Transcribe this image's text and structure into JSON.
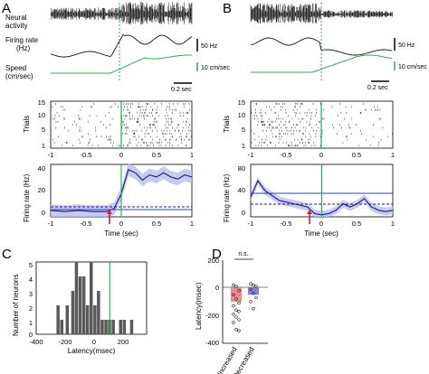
{
  "panels": {
    "A": {
      "label": "A",
      "neural_label": "Neural\nactivity",
      "rate_label": "Firing rate\n(Hz)",
      "speed_label": "Speed\n(cm/sec)",
      "rate_scale": "50 Hz",
      "speed_scale": "10 cm/sec",
      "time_scale": "0.2 sec",
      "raster": {
        "ylabel": "Trials",
        "yticks": [
          "15",
          "10",
          "5",
          "1"
        ]
      },
      "psth": {
        "ylabel": "Firing rate (Hz)",
        "yticks": [
          "40",
          "20",
          "0"
        ],
        "xlabel": "Time (sec)",
        "xticks": [
          "-1",
          "-0.5",
          "0",
          "0.5",
          "1"
        ]
      }
    },
    "B": {
      "label": "B",
      "rate_scale": "50 Hz",
      "speed_scale": "10 cm/sec",
      "time_scale": "0.2 sec",
      "raster": {
        "ylabel": "Trials",
        "yticks": [
          "15",
          "10",
          "5",
          "1"
        ]
      },
      "psth": {
        "ylabel": "Firing rate (Hz)",
        "yticks": [
          "80",
          "40",
          "0"
        ],
        "xlabel": "Time (sec)",
        "xticks": [
          "-1",
          "-0.5",
          "0",
          "0.5",
          "1"
        ]
      }
    },
    "C": {
      "label": "C",
      "ylabel": "Number of neurons",
      "xlabel": "Latency(msec)",
      "yticks": [
        "5",
        "4",
        "3",
        "2",
        "1",
        "0"
      ],
      "xticks": [
        "-400",
        "-200",
        "0",
        "200"
      ]
    },
    "D": {
      "label": "D",
      "ylabel": "Latency(msec)",
      "yticks": [
        "200",
        "0",
        "-200",
        "-400"
      ],
      "significance": "n.s.",
      "categories": [
        "Increased",
        "Decreased"
      ]
    }
  },
  "colors": {
    "speed": "#3aa655",
    "onset": "#19b04a",
    "fit": "#2b3fbf",
    "band": "#b9bdf2",
    "arrow": "#e8191c",
    "bar_inc": "#f08a86",
    "bar_dec": "#7f7fe6",
    "hist": "#595959"
  },
  "chart_data": [
    {
      "type": "bar",
      "title": "",
      "xlabel": "Latency(msec)",
      "ylabel": "Number of neurons",
      "xlim": [
        -400,
        200
      ],
      "ylim": [
        0,
        5
      ],
      "x": [
        -280,
        -260,
        -230,
        -200,
        -180,
        -160,
        -140,
        -120,
        -100,
        -80,
        -60,
        -40,
        -20,
        0,
        20,
        60,
        80,
        120
      ],
      "values": [
        2,
        1,
        2,
        3,
        5,
        4,
        4,
        2,
        5,
        2,
        3,
        1,
        1,
        1,
        1,
        1,
        1,
        1
      ],
      "annotations": [
        "onset line at 0 msec"
      ]
    },
    {
      "type": "bar",
      "title": "",
      "xlabel": "",
      "ylabel": "Latency(msec)",
      "ylim": [
        -400,
        200
      ],
      "categories": [
        "Increased",
        "Decreased"
      ],
      "values": [
        -100,
        -50
      ],
      "annotations": [
        "n.s."
      ]
    },
    {
      "type": "line",
      "title": "",
      "xlabel": "Time (sec)",
      "ylabel": "Firing rate (Hz)",
      "xlim": [
        -1,
        1
      ],
      "ylim": [
        0,
        50
      ],
      "x": [
        -1,
        -0.8,
        -0.6,
        -0.4,
        -0.2,
        -0.1,
        0,
        0.1,
        0.2,
        0.3,
        0.4,
        0.5,
        0.6,
        0.7,
        0.8,
        0.9,
        1.0
      ],
      "series": [
        {
          "values": [
            6,
            5,
            6,
            5,
            5,
            8,
            22,
            45,
            42,
            35,
            40,
            38,
            42,
            38,
            36,
            40,
            38
          ]
        }
      ]
    },
    {
      "type": "line",
      "title": "",
      "xlabel": "Time (sec)",
      "ylabel": "Firing rate (Hz)",
      "xlim": [
        -1,
        1
      ],
      "ylim": [
        0,
        80
      ],
      "x": [
        -1,
        -0.9,
        -0.8,
        -0.6,
        -0.4,
        -0.2,
        -0.1,
        0,
        0.1,
        0.2,
        0.3,
        0.4,
        0.5,
        0.6,
        0.7,
        0.8,
        0.9,
        1.0
      ],
      "series": [
        {
          "values": [
            30,
            55,
            40,
            25,
            20,
            15,
            5,
            3,
            5,
            10,
            20,
            15,
            20,
            28,
            15,
            10,
            8,
            10
          ]
        }
      ]
    }
  ]
}
